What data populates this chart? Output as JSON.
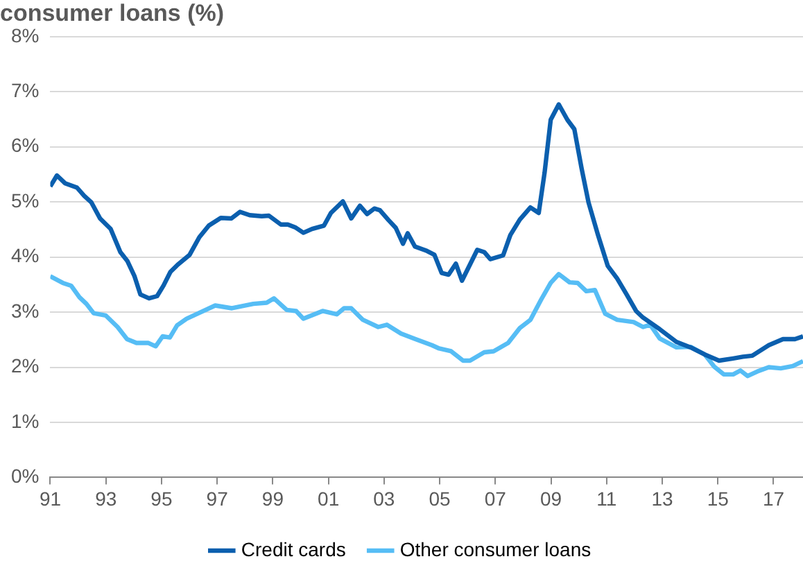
{
  "chart_data": {
    "type": "line",
    "title": "consumer loans (%)",
    "xlim": [
      1991,
      2018.06
    ],
    "xticks": [
      {
        "value": 1991,
        "label": "91"
      },
      {
        "value": 1993,
        "label": "93"
      },
      {
        "value": 1995,
        "label": "95"
      },
      {
        "value": 1997,
        "label": "97"
      },
      {
        "value": 1999,
        "label": "99"
      },
      {
        "value": 2001,
        "label": "01"
      },
      {
        "value": 2003,
        "label": "03"
      },
      {
        "value": 2005,
        "label": "05"
      },
      {
        "value": 2007,
        "label": "07"
      },
      {
        "value": 2009,
        "label": "09"
      },
      {
        "value": 2011,
        "label": "11"
      },
      {
        "value": 2013,
        "label": "13"
      },
      {
        "value": 2015,
        "label": "15"
      },
      {
        "value": 2017,
        "label": "17"
      }
    ],
    "ylim": [
      0,
      8
    ],
    "yticks": [
      {
        "value": 0,
        "label": "0%"
      },
      {
        "value": 1,
        "label": "1%"
      },
      {
        "value": 2,
        "label": "2%"
      },
      {
        "value": 3,
        "label": "3%"
      },
      {
        "value": 4,
        "label": "4%"
      },
      {
        "value": 5,
        "label": "5%"
      },
      {
        "value": 6,
        "label": "6%"
      },
      {
        "value": 7,
        "label": "7%"
      },
      {
        "value": 8,
        "label": "8%"
      }
    ],
    "grid": "y",
    "legend": "bottom",
    "marker": "none",
    "line_style": "solid",
    "series": [
      {
        "name": "Credit cards",
        "color": "#0b5fae",
        "x": [
          1991.0,
          1991.24,
          1991.53,
          1991.96,
          1992.22,
          1992.48,
          1992.79,
          1993.17,
          1993.52,
          1993.77,
          1994.03,
          1994.24,
          1994.55,
          1994.84,
          1995.07,
          1995.32,
          1995.58,
          1996.01,
          1996.36,
          1996.7,
          1997.13,
          1997.51,
          1997.82,
          1998.17,
          1998.6,
          1998.86,
          1999.29,
          1999.54,
          1999.8,
          2000.1,
          2000.41,
          2000.84,
          2001.09,
          2001.52,
          2001.82,
          2002.13,
          2002.39,
          2002.65,
          2002.85,
          2003.16,
          2003.42,
          2003.68,
          2003.85,
          2004.11,
          2004.54,
          2004.81,
          2005.07,
          2005.32,
          2005.58,
          2005.8,
          2006.35,
          2006.6,
          2006.82,
          2007.28,
          2007.54,
          2007.88,
          2008.26,
          2008.56,
          2008.77,
          2008.99,
          2009.28,
          2009.59,
          2009.84,
          2010.1,
          2010.35,
          2010.69,
          2011.04,
          2011.38,
          2011.72,
          2012.06,
          2012.31,
          2012.91,
          2013.51,
          2014.02,
          2014.53,
          2015.04,
          2015.55,
          2015.9,
          2016.24,
          2016.83,
          2017.34,
          2017.77,
          2018.06
        ],
        "values": [
          5.28,
          5.48,
          5.34,
          5.26,
          5.11,
          4.99,
          4.7,
          4.51,
          4.09,
          3.93,
          3.65,
          3.32,
          3.25,
          3.29,
          3.48,
          3.73,
          3.86,
          4.04,
          4.36,
          4.57,
          4.71,
          4.7,
          4.82,
          4.76,
          4.74,
          4.75,
          4.59,
          4.59,
          4.54,
          4.44,
          4.51,
          4.57,
          4.8,
          5.01,
          4.7,
          4.93,
          4.78,
          4.88,
          4.85,
          4.67,
          4.53,
          4.24,
          4.43,
          4.19,
          4.11,
          4.04,
          3.71,
          3.68,
          3.88,
          3.57,
          4.13,
          4.09,
          3.96,
          4.03,
          4.4,
          4.68,
          4.9,
          4.8,
          5.53,
          6.49,
          6.77,
          6.49,
          6.32,
          5.61,
          4.99,
          4.4,
          3.84,
          3.61,
          3.32,
          3.02,
          2.9,
          2.69,
          2.46,
          2.36,
          2.23,
          2.12,
          2.16,
          2.19,
          2.21,
          2.4,
          2.51,
          2.51,
          2.56
        ]
      },
      {
        "name": "Other consumer loans",
        "color": "#56bdf5",
        "x": [
          1991.0,
          1991.45,
          1991.75,
          1992.05,
          1992.3,
          1992.56,
          1992.99,
          1993.42,
          1993.76,
          1994.1,
          1994.53,
          1994.79,
          1995.04,
          1995.3,
          1995.56,
          1995.9,
          1996.33,
          1996.93,
          1997.53,
          1998.3,
          1998.78,
          1999.04,
          1999.5,
          1999.84,
          2000.1,
          2000.79,
          2001.3,
          2001.56,
          2001.82,
          2002.24,
          2002.79,
          2003.1,
          2003.61,
          2004.13,
          2004.72,
          2004.98,
          2005.41,
          2005.84,
          2006.09,
          2006.6,
          2006.94,
          2007.46,
          2007.88,
          2008.26,
          2008.65,
          2008.99,
          2009.28,
          2009.67,
          2009.96,
          2010.27,
          2010.58,
          2010.95,
          2011.38,
          2011.97,
          2012.31,
          2012.57,
          2012.91,
          2013.51,
          2014.02,
          2014.53,
          2014.87,
          2015.21,
          2015.55,
          2015.81,
          2016.07,
          2016.41,
          2016.83,
          2017.26,
          2017.69,
          2018.06
        ],
        "values": [
          3.65,
          3.53,
          3.48,
          3.27,
          3.15,
          2.98,
          2.94,
          2.73,
          2.51,
          2.44,
          2.44,
          2.38,
          2.56,
          2.54,
          2.76,
          2.88,
          2.98,
          3.12,
          3.07,
          3.15,
          3.17,
          3.25,
          3.04,
          3.02,
          2.88,
          3.02,
          2.96,
          3.07,
          3.07,
          2.86,
          2.73,
          2.77,
          2.61,
          2.51,
          2.4,
          2.34,
          2.29,
          2.12,
          2.12,
          2.27,
          2.29,
          2.44,
          2.71,
          2.86,
          3.23,
          3.53,
          3.69,
          3.54,
          3.53,
          3.38,
          3.4,
          2.97,
          2.86,
          2.82,
          2.73,
          2.77,
          2.52,
          2.36,
          2.37,
          2.23,
          2.01,
          1.87,
          1.87,
          1.94,
          1.84,
          1.92,
          2.0,
          1.98,
          2.02,
          2.11
        ]
      }
    ]
  }
}
